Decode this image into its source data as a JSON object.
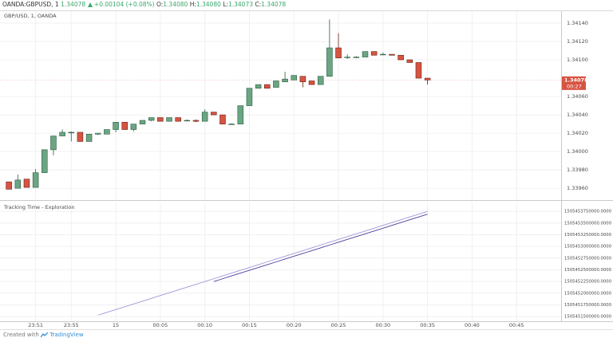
{
  "header": {
    "symbol": "OANDA:GBPUSD, 1",
    "last": "1.34078",
    "change": "+0.00104 (+0.08%)",
    "o_label": "O:",
    "o": "1.34080",
    "h_label": "H:",
    "h": "1.34080",
    "l_label": "L:",
    "l": "1.34073",
    "c_label": "C:",
    "c": "1.34078"
  },
  "footer": {
    "created": "Created with",
    "brand": "TradingView"
  },
  "chart_data": [
    {
      "type": "candlestick",
      "title": "GBP/USD, 1, OANDA",
      "x": [
        "23:48",
        "23:49",
        "23:50",
        "23:51",
        "23:52",
        "23:53",
        "23:54",
        "23:55",
        "23:56",
        "23:57",
        "23:58",
        "23:59",
        "00:00",
        "00:01",
        "00:02",
        "00:03",
        "00:04",
        "00:05",
        "00:06",
        "00:07",
        "00:08",
        "00:09",
        "00:10",
        "00:11",
        "00:12",
        "00:13",
        "00:14",
        "00:15",
        "00:16",
        "00:17",
        "00:18",
        "00:19",
        "00:20",
        "00:21",
        "00:22",
        "00:23",
        "00:24",
        "00:25",
        "00:26",
        "00:27",
        "00:28",
        "00:29",
        "00:30",
        "00:31",
        "00:32",
        "00:33",
        "00:34",
        "00:35"
      ],
      "open": [
        1.33967,
        1.3396,
        1.3397,
        1.33961,
        1.33977,
        1.34002,
        1.34017,
        1.34021,
        1.34021,
        1.34011,
        1.34019,
        1.34019,
        1.34024,
        1.34032,
        1.34024,
        1.3403,
        1.34034,
        1.34037,
        1.34033,
        1.34037,
        1.34034,
        1.34034,
        1.34033,
        1.34043,
        1.3404,
        1.3403,
        1.3403,
        1.3405,
        1.34069,
        1.34073,
        1.3407,
        1.34076,
        1.34078,
        1.34082,
        1.34077,
        1.34073,
        1.34082,
        1.34113,
        1.34103,
        1.34103,
        1.34103,
        1.34109,
        1.34106,
        1.34106,
        1.34105,
        1.341,
        1.34097,
        1.3408
      ],
      "high": [
        1.33967,
        1.33975,
        1.3397,
        1.33981,
        1.34002,
        1.34017,
        1.34024,
        1.34022,
        1.34021,
        1.34019,
        1.3402,
        1.34024,
        1.34032,
        1.34032,
        1.3403,
        1.34034,
        1.34037,
        1.34037,
        1.34037,
        1.34037,
        1.34035,
        1.34035,
        1.34046,
        1.34043,
        1.3404,
        1.34031,
        1.3405,
        1.34069,
        1.34073,
        1.34073,
        1.34077,
        1.34087,
        1.34083,
        1.34082,
        1.34077,
        1.34082,
        1.34144,
        1.34129,
        1.34106,
        1.34104,
        1.34109,
        1.34109,
        1.34108,
        1.34106,
        1.34105,
        1.341,
        1.34097,
        1.3408
      ],
      "low": [
        1.33959,
        1.3396,
        1.33961,
        1.33961,
        1.33977,
        1.33996,
        1.34017,
        1.34011,
        1.34011,
        1.34011,
        1.34018,
        1.34019,
        1.34021,
        1.34024,
        1.34022,
        1.3403,
        1.34033,
        1.34033,
        1.34033,
        1.34033,
        1.34033,
        1.34032,
        1.34033,
        1.3404,
        1.3403,
        1.3403,
        1.3403,
        1.3405,
        1.34069,
        1.34069,
        1.3407,
        1.34076,
        1.34078,
        1.3407,
        1.34073,
        1.34073,
        1.34082,
        1.34102,
        1.34101,
        1.34102,
        1.34103,
        1.34105,
        1.34105,
        1.34105,
        1.341,
        1.34097,
        1.3408,
        1.34073
      ],
      "close": [
        1.33959,
        1.33969,
        1.33961,
        1.33977,
        1.34002,
        1.34017,
        1.34021,
        1.34021,
        1.34011,
        1.34019,
        1.3402,
        1.34024,
        1.34032,
        1.34024,
        1.3403,
        1.34034,
        1.34037,
        1.34033,
        1.34037,
        1.34033,
        1.34034,
        1.34033,
        1.34043,
        1.3404,
        1.3403,
        1.3403,
        1.3405,
        1.34069,
        1.34073,
        1.34069,
        1.34077,
        1.34079,
        1.34083,
        1.34076,
        1.34073,
        1.34082,
        1.34113,
        1.34102,
        1.34103,
        1.34103,
        1.34109,
        1.34105,
        1.34106,
        1.34105,
        1.341,
        1.34097,
        1.3408,
        1.34078
      ],
      "up_color": "#6ba583",
      "down_color": "#d75442",
      "last_price": 1.34078,
      "countdown": "00:27",
      "xlim": [
        "23:47",
        "00:50"
      ],
      "ylim": [
        1.33948,
        1.34153
      ],
      "yticks": [
        {
          "value": 1.3414,
          "label": "1.34140"
        },
        {
          "value": 1.3412,
          "label": "1.34120"
        },
        {
          "value": 1.341,
          "label": "1.34100"
        },
        {
          "value": 1.3406,
          "label": "1.34060"
        },
        {
          "value": 1.3404,
          "label": "1.34040"
        },
        {
          "value": 1.3402,
          "label": "1.34020"
        },
        {
          "value": 1.34,
          "label": "1.34000"
        },
        {
          "value": 1.3398,
          "label": "1.33980"
        },
        {
          "value": 1.3396,
          "label": "1.33960"
        }
      ],
      "grid": true
    },
    {
      "type": "line",
      "title": "Tracking Time - Exploration",
      "x": [
        "23:48",
        "23:49",
        "23:50",
        "23:51",
        "23:52",
        "23:53",
        "23:54",
        "23:55",
        "23:56",
        "23:57",
        "23:58",
        "23:59",
        "00:00",
        "00:01",
        "00:02",
        "00:03",
        "00:04",
        "00:05",
        "00:06",
        "00:07",
        "00:08",
        "00:09",
        "00:10",
        "00:11",
        "00:12",
        "00:13",
        "00:14",
        "00:15",
        "00:16",
        "00:17",
        "00:18",
        "00:19",
        "00:20",
        "00:21",
        "00:22",
        "00:23",
        "00:24",
        "00:25",
        "00:26",
        "00:27",
        "00:28",
        "00:29",
        "00:30",
        "00:31",
        "00:32",
        "00:33",
        "00:34",
        "00:35"
      ],
      "series": [
        {
          "color": "#a596d8",
          "values": [
            null,
            null,
            null,
            null,
            null,
            null,
            null,
            null,
            null,
            null,
            1505451530000,
            1505451590000,
            1505451650000,
            1505451710000,
            1505451770000,
            1505451830000,
            1505451890000,
            1505451950000,
            1505452010000,
            1505452070000,
            1505452130000,
            1505452190000,
            1505452250000,
            1505452310000,
            1505452370000,
            1505452430000,
            1505452490000,
            1505452550000,
            1505452610000,
            1505452670000,
            1505452730000,
            1505452790000,
            1505452850000,
            1505452910000,
            1505452970000,
            1505453030000,
            1505453090000,
            1505453150000,
            1505453210000,
            1505453270000,
            1505453330000,
            1505453390000,
            1505453450000,
            1505453510000,
            1505453570000,
            1505453630000,
            1505453690000,
            1505453750000
          ]
        },
        {
          "color": "#4b3f9e",
          "values": [
            null,
            null,
            null,
            null,
            null,
            null,
            null,
            null,
            null,
            null,
            null,
            null,
            null,
            null,
            null,
            null,
            null,
            null,
            null,
            null,
            null,
            null,
            null,
            1505452250000,
            1505452310000,
            1505452370000,
            1505452430000,
            1505452490000,
            1505452550000,
            1505452610000,
            1505452670000,
            1505452730000,
            1505452790000,
            1505452850000,
            1505452910000,
            1505452970000,
            1505453030000,
            1505453090000,
            1505453150000,
            1505453210000,
            1505453270000,
            1505453330000,
            1505453390000,
            1505453450000,
            1505453510000,
            1505453570000,
            1505453630000,
            1505453690000
          ]
        }
      ],
      "xlim": [
        "23:47",
        "00:50"
      ],
      "xticks": [
        "23:51",
        "23:55",
        {
          "value": "00:00",
          "label": "15"
        },
        "00:05",
        "00:10",
        "00:15",
        "00:20",
        "00:25",
        "00:30",
        "00:35",
        "00:40",
        "00:45"
      ],
      "ylim": [
        1505451400000,
        1505453940000
      ],
      "yticks": [
        {
          "value": 1505453750000,
          "label": "1505453750000.0000"
        },
        {
          "value": 1505453500000,
          "label": "1505453500000.0000"
        },
        {
          "value": 1505453250000,
          "label": "1505453250000.0000"
        },
        {
          "value": 1505453000000,
          "label": "1505453000000.0000"
        },
        {
          "value": 1505452750000,
          "label": "1505452750000.0000"
        },
        {
          "value": 1505452500000,
          "label": "1505452500000.0000"
        },
        {
          "value": 1505452250000,
          "label": "1505452250000.0000"
        },
        {
          "value": 1505452000000,
          "label": "1505452000000.0000"
        },
        {
          "value": 1505451750000,
          "label": "1505451750000.0000"
        },
        {
          "value": 1505451500000,
          "label": "1505451500000.0000"
        }
      ],
      "grid": true
    }
  ]
}
